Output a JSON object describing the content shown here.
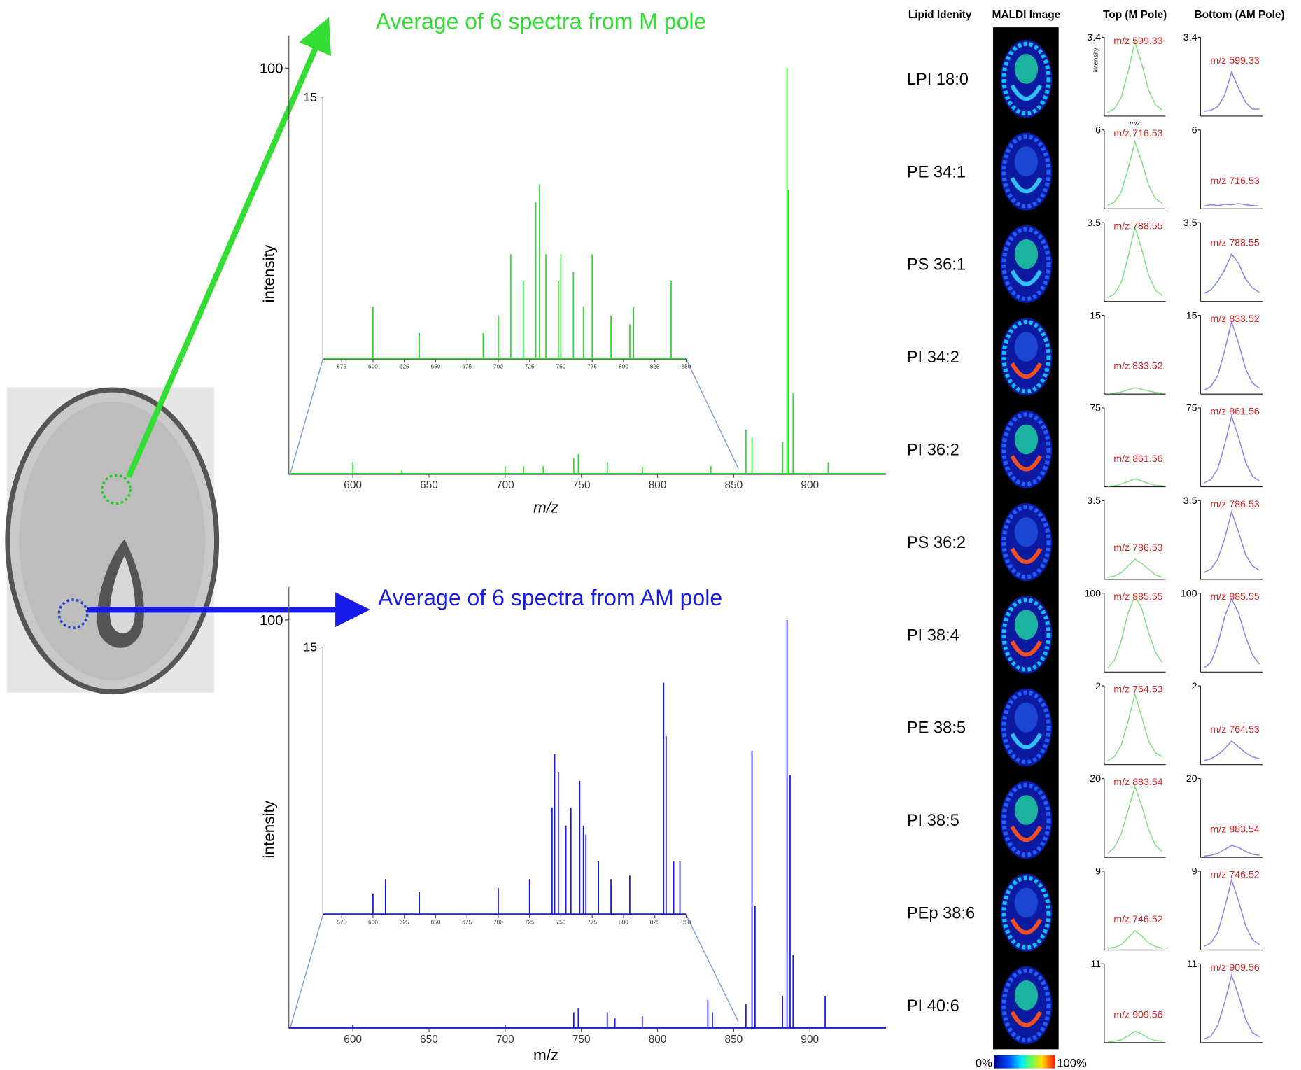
{
  "chart_data": [
    {
      "type": "stem",
      "title": "Average of 6 spectra from M pole",
      "xlabel": "m/z",
      "ylabel": "intensity",
      "color": "#2fdc2f",
      "xlim": [
        558,
        950
      ],
      "ylim": [
        0,
        108
      ],
      "xticks": [
        600,
        650,
        700,
        750,
        800,
        850,
        900
      ],
      "yticks": [
        100
      ],
      "x": [
        600,
        632,
        700,
        712,
        725,
        745,
        748,
        767,
        790,
        835,
        858,
        862,
        882,
        885,
        886,
        889,
        912
      ],
      "values": [
        3,
        1,
        2,
        2,
        2,
        4,
        5,
        3,
        2,
        2,
        11,
        9,
        8,
        100,
        70,
        20,
        3
      ]
    },
    {
      "type": "stem",
      "color": "#2fdc2f",
      "xlim": [
        560,
        850
      ],
      "ylim": [
        0,
        15
      ],
      "xticks": [
        575,
        600,
        625,
        650,
        675,
        700,
        725,
        750,
        775,
        800,
        825,
        850
      ],
      "yticks": [
        15
      ],
      "x": [
        600,
        637,
        688,
        700,
        710,
        720,
        730,
        733,
        738,
        748,
        750,
        760,
        768,
        775,
        790,
        805,
        808,
        838
      ],
      "values": [
        3,
        1.5,
        1.5,
        2.5,
        6,
        4.5,
        9,
        10,
        6,
        4.5,
        6,
        5,
        3,
        6,
        2.5,
        2,
        3,
        4.5
      ]
    },
    {
      "type": "stem",
      "title": "Average of 6 spectra from AM pole",
      "xlabel": "m/z",
      "ylabel": "intensity",
      "color": "#1a1ae8",
      "xlim": [
        558,
        950
      ],
      "ylim": [
        0,
        108
      ],
      "xticks": [
        600,
        650,
        700,
        750,
        800,
        850,
        900
      ],
      "yticks": [
        100
      ],
      "x": [
        600,
        700,
        745,
        748,
        767,
        772,
        790,
        833,
        836,
        858,
        862,
        864,
        882,
        885,
        887,
        889,
        910
      ],
      "values": [
        1,
        1,
        4,
        5,
        4,
        2.5,
        3,
        7,
        4,
        6,
        68,
        30,
        8,
        100,
        62,
        18,
        8
      ]
    },
    {
      "type": "stem",
      "color": "#1a1ae8",
      "xlim": [
        560,
        850
      ],
      "ylim": [
        0,
        15
      ],
      "xticks": [
        575,
        600,
        625,
        650,
        675,
        700,
        725,
        750,
        775,
        800,
        825,
        850
      ],
      "yticks": [
        15
      ],
      "x": [
        600,
        610,
        637,
        700,
        725,
        743,
        745,
        748,
        754,
        758,
        765,
        768,
        770,
        780,
        790,
        805,
        832,
        834,
        840,
        845
      ],
      "values": [
        1.2,
        2,
        1.3,
        1.5,
        2,
        6,
        9,
        8,
        5,
        6,
        7.5,
        5,
        4.5,
        3,
        2,
        2.2,
        13,
        10,
        3,
        3
      ]
    }
  ],
  "lipid_table": {
    "headers": [
      "Lipid Idenity",
      "MALDI Image",
      "Top (M Pole)",
      "Bottom (AM Pole)"
    ],
    "rows": [
      {
        "lipid": "LPI 18:0",
        "top": {
          "type": "line",
          "ylim": [
            0,
            3.4
          ],
          "yticks": [
            3.4
          ],
          "label": "m/z 599.33",
          "ylabel": "intensity",
          "xlabel": "m/z",
          "values": [
            0.16,
            0.32,
            0.8,
            1.92,
            3.2,
            2.24,
            1.12,
            0.48,
            0.26
          ]
        },
        "bottom": {
          "type": "line",
          "ylim": [
            0,
            3.4
          ],
          "yticks": [
            3.4
          ],
          "label": "m/z 599.33",
          "values": [
            0.2,
            0.25,
            0.4,
            0.9,
            1.9,
            1.2,
            0.6,
            0.3,
            0.3
          ]
        }
      },
      {
        "lipid": "PE 34:1",
        "top": {
          "type": "line",
          "ylim": [
            0,
            6
          ],
          "yticks": [
            6
          ],
          "label": "m/z 716.53",
          "values": [
            0.26,
            0.51,
            1.28,
            3.06,
            5.1,
            3.57,
            1.79,
            0.77,
            0.41
          ]
        },
        "bottom": {
          "type": "line",
          "ylim": [
            0,
            6
          ],
          "yticks": [
            6
          ],
          "label": "m/z 716.53",
          "values": [
            0.2,
            0.3,
            0.25,
            0.35,
            0.3,
            0.4,
            0.3,
            0.25,
            0.2
          ]
        }
      },
      {
        "lipid": "PS 36:1",
        "top": {
          "type": "line",
          "ylim": [
            0,
            3.5
          ],
          "yticks": [
            3.5
          ],
          "label": "m/z 788.55",
          "values": [
            0.17,
            0.33,
            0.83,
            1.98,
            3.3,
            2.31,
            1.16,
            0.5,
            0.26
          ]
        },
        "bottom": {
          "type": "line",
          "ylim": [
            0,
            3.5
          ],
          "yticks": [
            3.5
          ],
          "label": "m/z 788.55",
          "values": [
            0.35,
            0.5,
            0.9,
            1.4,
            2.1,
            1.7,
            1,
            0.6,
            0.4
          ]
        }
      },
      {
        "lipid": "PI 34:2",
        "top": {
          "type": "line",
          "ylim": [
            0,
            15
          ],
          "yticks": [
            15
          ],
          "label": "m/z 833.52",
          "values": [
            0.1,
            0.2,
            0.4,
            0.8,
            1.2,
            0.9,
            0.6,
            0.3,
            0.2
          ]
        },
        "bottom": {
          "type": "line",
          "ylim": [
            0,
            15
          ],
          "yticks": [
            15
          ],
          "label": "m/z 833.52",
          "values": [
            0.7,
            1.4,
            3.5,
            8.3,
            13.8,
            9.7,
            4.8,
            2.1,
            1.1
          ]
        }
      },
      {
        "lipid": "PI 36:2",
        "top": {
          "type": "line",
          "ylim": [
            0,
            75
          ],
          "yticks": [
            75
          ],
          "label": "m/z 861.56",
          "values": [
            0.5,
            1,
            2.5,
            5,
            7.5,
            5.5,
            3,
            1.5,
            1
          ]
        },
        "bottom": {
          "type": "line",
          "ylim": [
            0,
            75
          ],
          "yticks": [
            75
          ],
          "label": "m/z 861.56",
          "values": [
            3.4,
            6.7,
            16.8,
            40,
            67,
            47,
            23.5,
            10,
            5.4
          ]
        }
      },
      {
        "lipid": "PS 36:2",
        "top": {
          "type": "line",
          "ylim": [
            0,
            3.5
          ],
          "yticks": [
            3.5
          ],
          "label": "m/z 786.53",
          "values": [
            0.1,
            0.15,
            0.3,
            0.6,
            0.9,
            0.7,
            0.45,
            0.2,
            0.1
          ]
        },
        "bottom": {
          "type": "line",
          "ylim": [
            0,
            3.5
          ],
          "yticks": [
            3.5
          ],
          "label": "m/z 786.53",
          "values": [
            0.3,
            0.45,
            0.9,
            1.8,
            3,
            2.1,
            1.1,
            0.6,
            0.4
          ]
        }
      },
      {
        "lipid": "PI 38:4",
        "top": {
          "type": "line",
          "ylim": [
            0,
            100
          ],
          "yticks": [
            100
          ],
          "label": "m/z 885.55",
          "values": [
            5,
            15,
            40,
            75,
            97,
            80,
            50,
            25,
            12
          ]
        },
        "bottom": {
          "type": "line",
          "ylim": [
            0,
            100
          ],
          "yticks": [
            100
          ],
          "label": "m/z 885.55",
          "values": [
            5,
            12,
            35,
            70,
            93,
            75,
            45,
            22,
            10
          ]
        }
      },
      {
        "lipid": "PE 38:5",
        "top": {
          "type": "line",
          "ylim": [
            0,
            2
          ],
          "yticks": [
            2
          ],
          "label": "m/z 764.53",
          "values": [
            0.1,
            0.2,
            0.5,
            1.1,
            1.8,
            1.2,
            0.6,
            0.3,
            0.2
          ]
        },
        "bottom": {
          "type": "line",
          "ylim": [
            0,
            2
          ],
          "yticks": [
            2
          ],
          "label": "m/z 764.53",
          "values": [
            0.1,
            0.15,
            0.25,
            0.4,
            0.6,
            0.45,
            0.3,
            0.2,
            0.15
          ]
        }
      },
      {
        "lipid": "PI 38:5",
        "top": {
          "type": "line",
          "ylim": [
            0,
            20
          ],
          "yticks": [
            20
          ],
          "label": "m/z 883.54",
          "values": [
            1,
            2.5,
            6,
            12,
            18,
            13,
            7,
            3,
            1.5
          ]
        },
        "bottom": {
          "type": "line",
          "ylim": [
            0,
            20
          ],
          "yticks": [
            20
          ],
          "label": "m/z 883.54",
          "values": [
            0.3,
            0.5,
            1,
            2,
            3,
            2.5,
            1.5,
            0.8,
            0.5
          ]
        }
      },
      {
        "lipid": "PEp 38:6",
        "top": {
          "type": "line",
          "ylim": [
            0,
            9
          ],
          "yticks": [
            9
          ],
          "label": "m/z 746.52",
          "values": [
            0.2,
            0.3,
            0.6,
            1.4,
            2.2,
            1.6,
            0.8,
            0.4,
            0.2
          ]
        },
        "bottom": {
          "type": "line",
          "ylim": [
            0,
            9
          ],
          "yticks": [
            9
          ],
          "label": "m/z 746.52",
          "values": [
            0.4,
            0.8,
            2,
            4.8,
            8,
            5.6,
            2.8,
            1.2,
            0.6
          ]
        }
      },
      {
        "lipid": "PI 40:6",
        "top": {
          "type": "line",
          "ylim": [
            0,
            11
          ],
          "yticks": [
            11
          ],
          "label": "m/z 909.56",
          "values": [
            0.1,
            0.2,
            0.4,
            0.9,
            1.6,
            1.2,
            0.6,
            0.3,
            0.2
          ]
        },
        "bottom": {
          "type": "line",
          "ylim": [
            0,
            11
          ],
          "yticks": [
            11
          ],
          "label": "m/z 909.56",
          "values": [
            0.5,
            0.9,
            2.4,
            5.6,
            9.4,
            6.6,
            3.3,
            1.4,
            0.8
          ]
        }
      }
    ]
  },
  "colorbar": {
    "min_label": "0%",
    "max_label": "100%"
  }
}
